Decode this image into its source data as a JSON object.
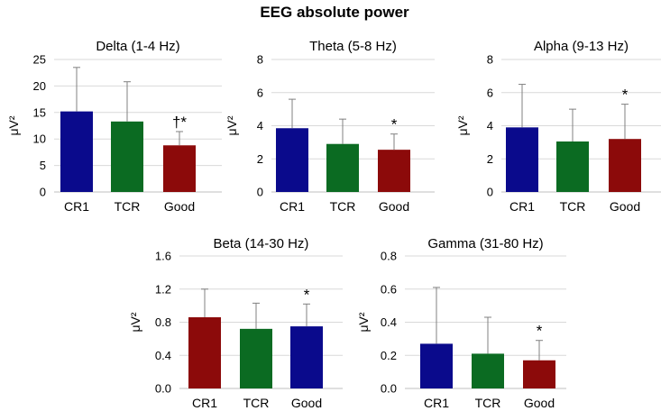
{
  "figure_title": "EEG absolute power",
  "colors": {
    "blue": "#0a0a8c",
    "green": "#0b6b22",
    "red": "#8c0a0a",
    "grid": "#d9d9d9",
    "error": "#808080"
  },
  "chart_data": [
    {
      "type": "bar",
      "title": "Delta (1-4 Hz)",
      "ylabel": "μV²",
      "categories": [
        "CR1",
        "TCR",
        "Good"
      ],
      "values": [
        15.2,
        13.3,
        8.8
      ],
      "error_upper": [
        23.5,
        20.8,
        11.4
      ],
      "bar_colors": [
        "#0a0a8c",
        "#0b6b22",
        "#8c0a0a"
      ],
      "annotations": [
        "",
        "",
        "†*"
      ],
      "ylim": [
        0,
        25
      ],
      "yticks": [
        0,
        5,
        10,
        15,
        20,
        25
      ],
      "ytick_labels": [
        "0",
        "5",
        "10",
        "15",
        "20",
        "25"
      ],
      "grid": true
    },
    {
      "type": "bar",
      "title": "Theta (5-8 Hz)",
      "ylabel": "μV²",
      "categories": [
        "CR1",
        "TCR",
        "Good"
      ],
      "values": [
        3.85,
        2.9,
        2.55
      ],
      "error_upper": [
        5.6,
        4.4,
        3.5
      ],
      "bar_colors": [
        "#0a0a8c",
        "#0b6b22",
        "#8c0a0a"
      ],
      "annotations": [
        "",
        "",
        "*"
      ],
      "ylim": [
        0,
        8
      ],
      "yticks": [
        0,
        2,
        4,
        6,
        8
      ],
      "ytick_labels": [
        "0",
        "2",
        "4",
        "6",
        "8"
      ],
      "grid": true
    },
    {
      "type": "bar",
      "title": "Alpha (9-13 Hz)",
      "ylabel": "μV²",
      "categories": [
        "CR1",
        "TCR",
        "Good"
      ],
      "values": [
        3.9,
        3.05,
        3.2
      ],
      "error_upper": [
        6.5,
        5.0,
        5.3
      ],
      "bar_colors": [
        "#0a0a8c",
        "#0b6b22",
        "#8c0a0a"
      ],
      "annotations": [
        "",
        "",
        "*"
      ],
      "ylim": [
        0,
        8
      ],
      "yticks": [
        0,
        2,
        4,
        6,
        8
      ],
      "ytick_labels": [
        "0",
        "2",
        "4",
        "6",
        "8"
      ],
      "grid": true
    },
    {
      "type": "bar",
      "title": "Beta (14-30 Hz)",
      "ylabel": "μV²",
      "categories": [
        "CR1",
        "TCR",
        "Good"
      ],
      "values": [
        0.86,
        0.72,
        0.75
      ],
      "error_upper": [
        1.2,
        1.03,
        1.02
      ],
      "bar_colors": [
        "#8c0a0a",
        "#0b6b22",
        "#0a0a8c"
      ],
      "annotations": [
        "",
        "",
        "*"
      ],
      "ylim": [
        0,
        1.6
      ],
      "yticks": [
        0,
        0.4,
        0.8,
        1.2,
        1.6
      ],
      "ytick_labels": [
        "0.0",
        "0.4",
        "0.8",
        "1.2",
        "1.6"
      ],
      "grid": true
    },
    {
      "type": "bar",
      "title": "Gamma (31-80 Hz)",
      "ylabel": "μV²",
      "categories": [
        "CR1",
        "TCR",
        "Good"
      ],
      "values": [
        0.27,
        0.21,
        0.17
      ],
      "error_upper": [
        0.61,
        0.43,
        0.29
      ],
      "bar_colors": [
        "#0a0a8c",
        "#0b6b22",
        "#8c0a0a"
      ],
      "annotations": [
        "",
        "",
        "*"
      ],
      "ylim": [
        0,
        0.8
      ],
      "yticks": [
        0,
        0.2,
        0.4,
        0.6,
        0.8
      ],
      "ytick_labels": [
        "0.0",
        "0.2",
        "0.4",
        "0.6",
        "0.8"
      ],
      "grid": true
    }
  ]
}
